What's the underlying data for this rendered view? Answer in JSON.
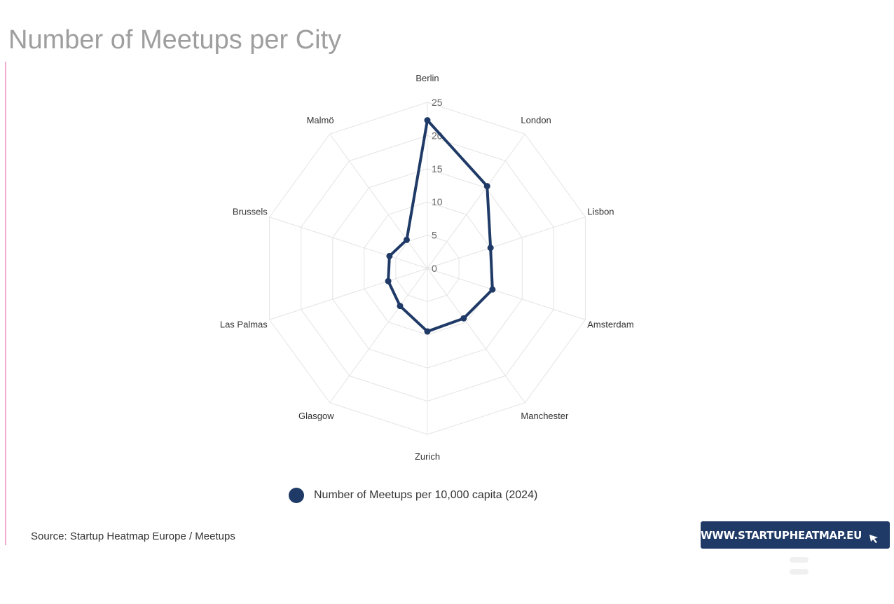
{
  "page": {
    "title": "Number of Meetups per City",
    "source": "Source: Startup Heatmap Europe / Meetups",
    "brand_link": "WWW.STARTUPHEATMAP.EU"
  },
  "colors": {
    "series": "#1f3a66",
    "accent": "#f3a8cf",
    "title": "#9e9e9e",
    "grid": "#e4e4e4"
  },
  "icons": {
    "brand_button": "cursor-pointer-icon",
    "corner": "menu-icon"
  },
  "chart_data": {
    "type": "radar",
    "title": "Number of Meetups per City",
    "categories": [
      "Berlin",
      "London",
      "Lisbon",
      "Amsterdam",
      "Manchester",
      "Zurich",
      "Glasgow",
      "Las Palmas",
      "Brussels",
      "Malmö"
    ],
    "radial_ticks": [
      "0",
      "5",
      "10",
      "15",
      "20",
      "25"
    ],
    "rlim": [
      0,
      25
    ],
    "grid": true,
    "legend_position": "bottom",
    "series": [
      {
        "name": "Number of Meetups per 10,000 capita (2024)",
        "values": [
          22.3,
          15.3,
          10.0,
          10.3,
          9.3,
          9.5,
          7.0,
          6.2,
          6.0,
          5.3
        ]
      }
    ]
  }
}
